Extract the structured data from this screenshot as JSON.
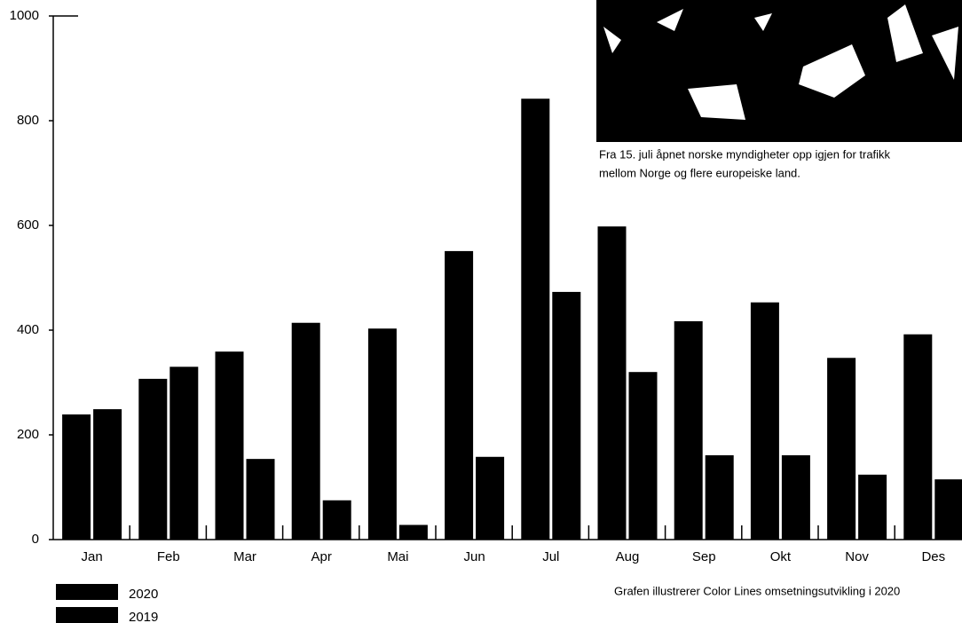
{
  "chart_data": {
    "type": "bar",
    "categories": [
      "Jan",
      "Feb",
      "Mar",
      "Apr",
      "Mai",
      "Jun",
      "Jul",
      "Aug",
      "Sep",
      "Okt",
      "Nov",
      "Des"
    ],
    "series": [
      {
        "name": "2020",
        "color": "#000000",
        "values": [
          239,
          307,
          359,
          414,
          403,
          551,
          842,
          598,
          417,
          453,
          347,
          392
        ]
      },
      {
        "name": "2019",
        "color": "#000000",
        "values": [
          249,
          330,
          154,
          75,
          28,
          158,
          473,
          320,
          161,
          161,
          124,
          115
        ]
      }
    ],
    "ylim": [
      0,
      1000
    ],
    "yticks": [
      0,
      200,
      400,
      600,
      800,
      1000
    ],
    "caption": [
      "Fra 15. juli åpnet norske myndigheter opp igjen for trafikk",
      "mellom Norge og flere europeiske land."
    ],
    "note": "Grafen illustrerer Color Lines omsetningsutvikling i 2020"
  }
}
